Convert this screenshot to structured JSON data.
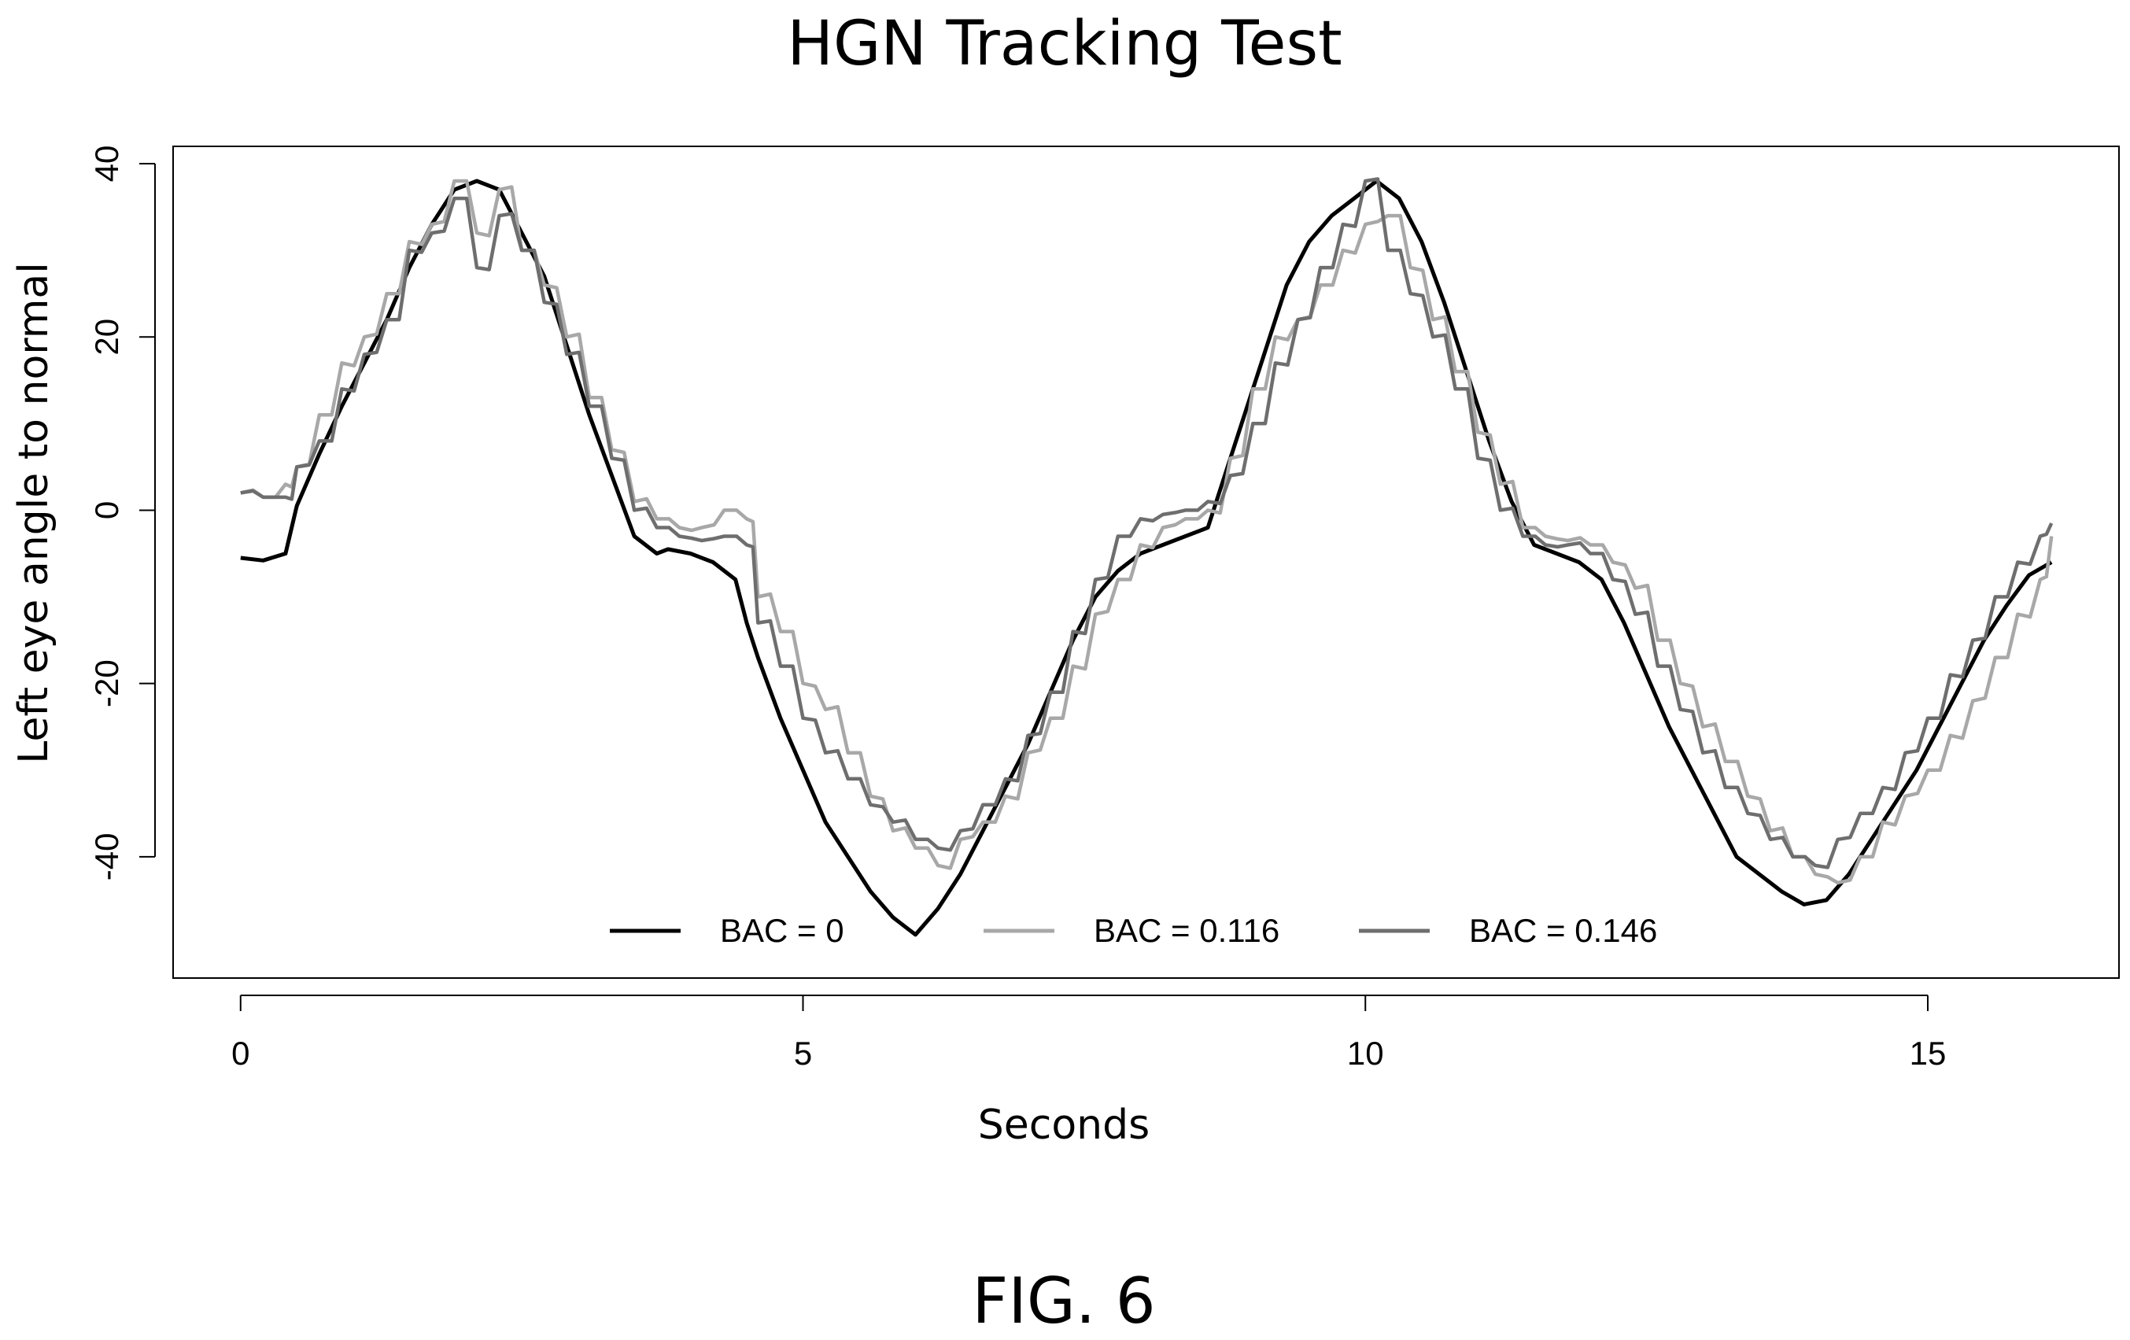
{
  "chart_data": {
    "type": "line",
    "title": "HGN Tracking Test",
    "xlabel": "Seconds",
    "ylabel": "Left eye angle to normal",
    "xlim": [
      -0.6,
      16.7
    ],
    "ylim": [
      -54,
      42
    ],
    "xticks": [
      0,
      5,
      10,
      15
    ],
    "yticks": [
      -40,
      -20,
      0,
      20,
      40
    ],
    "grid": false,
    "legend_position": "bottom-center",
    "figure_label": "FIG. 6",
    "series": [
      {
        "name": "BAC = 0",
        "color": "#000000",
        "x": [
          0.0,
          0.2,
          0.4,
          0.5,
          0.7,
          0.9,
          1.1,
          1.3,
          1.5,
          1.7,
          1.9,
          2.1,
          2.3,
          2.5,
          2.7,
          2.9,
          3.1,
          3.3,
          3.5,
          3.7,
          3.8,
          4.0,
          4.2,
          4.4,
          4.5,
          4.6,
          4.8,
          5.0,
          5.2,
          5.4,
          5.6,
          5.8,
          6.0,
          6.2,
          6.4,
          6.6,
          6.8,
          7.0,
          7.2,
          7.4,
          7.6,
          7.8,
          8.0,
          8.2,
          8.4,
          8.6,
          8.7,
          8.9,
          9.1,
          9.3,
          9.5,
          9.7,
          9.9,
          10.1,
          10.3,
          10.5,
          10.7,
          10.9,
          11.1,
          11.3,
          11.5,
          11.7,
          11.9,
          12.1,
          12.3,
          12.5,
          12.7,
          12.9,
          13.1,
          13.3,
          13.5,
          13.7,
          13.9,
          14.1,
          14.3,
          14.5,
          14.7,
          14.9,
          15.1,
          15.3,
          15.5,
          15.7,
          15.9,
          16.1
        ],
        "values": [
          -5.5,
          -5.8,
          -5.0,
          0.5,
          6.5,
          12,
          17,
          22,
          28,
          33,
          37,
          38,
          37,
          32,
          27,
          19,
          11,
          4,
          -3,
          -5,
          -4.5,
          -5,
          -6,
          -8,
          -13,
          -17,
          -24,
          -30,
          -36,
          -40,
          -44,
          -47,
          -49,
          -46,
          -42,
          -37,
          -32,
          -27,
          -21,
          -15,
          -10,
          -7,
          -5,
          -4,
          -3,
          -2,
          2,
          10,
          18,
          26,
          31,
          34,
          36,
          38,
          36,
          31,
          24,
          16,
          8,
          1,
          -4,
          -5,
          -6,
          -8,
          -13,
          -19,
          -25,
          -30,
          -35,
          -40,
          -42,
          -44,
          -45.5,
          -45,
          -42,
          -38,
          -34,
          -30,
          -25,
          -20,
          -15,
          -11,
          -7.5,
          -6
        ]
      },
      {
        "name": "BAC = 0.116",
        "color": "#a8a8a8",
        "x": [
          0.0,
          0.2,
          0.4,
          0.5,
          0.7,
          0.9,
          1.1,
          1.3,
          1.5,
          1.7,
          1.9,
          2.1,
          2.3,
          2.5,
          2.7,
          2.9,
          3.1,
          3.3,
          3.5,
          3.7,
          3.9,
          4.1,
          4.3,
          4.5,
          4.6,
          4.8,
          5.0,
          5.2,
          5.4,
          5.6,
          5.8,
          6.0,
          6.2,
          6.4,
          6.6,
          6.8,
          7.0,
          7.2,
          7.4,
          7.6,
          7.8,
          8.0,
          8.2,
          8.4,
          8.6,
          8.8,
          9.0,
          9.2,
          9.4,
          9.6,
          9.8,
          10.0,
          10.2,
          10.4,
          10.6,
          10.8,
          11.0,
          11.2,
          11.4,
          11.6,
          11.8,
          12.0,
          12.2,
          12.4,
          12.6,
          12.8,
          13.0,
          13.2,
          13.4,
          13.6,
          13.8,
          14.0,
          14.2,
          14.4,
          14.6,
          14.8,
          15.0,
          15.2,
          15.4,
          15.6,
          15.8,
          16.0,
          16.1
        ],
        "values": [
          2,
          1.5,
          3,
          5,
          11,
          17,
          20,
          25,
          31,
          33,
          38,
          32,
          37,
          30,
          26,
          20,
          13,
          7,
          1,
          -1,
          -2,
          -2,
          0,
          -1,
          -10,
          -14,
          -20,
          -23,
          -28,
          -33,
          -37,
          -39,
          -41,
          -38,
          -36,
          -33,
          -28,
          -24,
          -18,
          -12,
          -8,
          -4,
          -2,
          -1,
          0,
          6,
          14,
          20,
          22,
          26,
          30,
          33,
          34,
          28,
          22,
          16,
          9,
          3,
          -2,
          -3,
          -3.5,
          -4,
          -6,
          -9,
          -15,
          -20,
          -25,
          -29,
          -33,
          -37,
          -40,
          -42,
          -43,
          -40,
          -36,
          -33,
          -30,
          -26,
          -22,
          -17,
          -12,
          -8,
          -3
        ]
      },
      {
        "name": "BAC = 0.146",
        "color": "#6e6e6e",
        "x": [
          0.0,
          0.2,
          0.4,
          0.5,
          0.7,
          0.9,
          1.1,
          1.3,
          1.5,
          1.7,
          1.9,
          2.1,
          2.3,
          2.5,
          2.7,
          2.9,
          3.1,
          3.3,
          3.5,
          3.7,
          3.9,
          4.1,
          4.3,
          4.5,
          4.6,
          4.8,
          5.0,
          5.2,
          5.4,
          5.6,
          5.8,
          6.0,
          6.2,
          6.4,
          6.6,
          6.8,
          7.0,
          7.2,
          7.4,
          7.6,
          7.8,
          8.0,
          8.2,
          8.4,
          8.6,
          8.8,
          9.0,
          9.2,
          9.4,
          9.6,
          9.8,
          10.0,
          10.2,
          10.4,
          10.6,
          10.8,
          11.0,
          11.2,
          11.4,
          11.6,
          11.8,
          12.0,
          12.2,
          12.4,
          12.6,
          12.8,
          13.0,
          13.2,
          13.4,
          13.6,
          13.8,
          14.0,
          14.2,
          14.4,
          14.6,
          14.8,
          15.0,
          15.2,
          15.4,
          15.6,
          15.8,
          16.0,
          16.1
        ],
        "values": [
          2,
          1.5,
          1.5,
          5,
          8,
          14,
          18,
          22,
          30,
          32,
          36,
          28,
          34,
          30,
          24,
          18,
          12,
          6,
          0,
          -2,
          -3,
          -3.5,
          -3,
          -4,
          -13,
          -18,
          -24,
          -28,
          -31,
          -34,
          -36,
          -38,
          -39,
          -37,
          -34,
          -31,
          -26,
          -21,
          -14,
          -8,
          -3,
          -1,
          -0.5,
          0,
          1,
          4,
          10,
          17,
          22,
          28,
          33,
          38,
          30,
          25,
          20,
          14,
          6,
          0,
          -3,
          -4,
          -4,
          -5,
          -8,
          -12,
          -18,
          -23,
          -28,
          -32,
          -35,
          -38,
          -40,
          -41,
          -38,
          -35,
          -32,
          -28,
          -24,
          -19,
          -15,
          -10,
          -6,
          -3,
          -1.5
        ]
      }
    ]
  }
}
